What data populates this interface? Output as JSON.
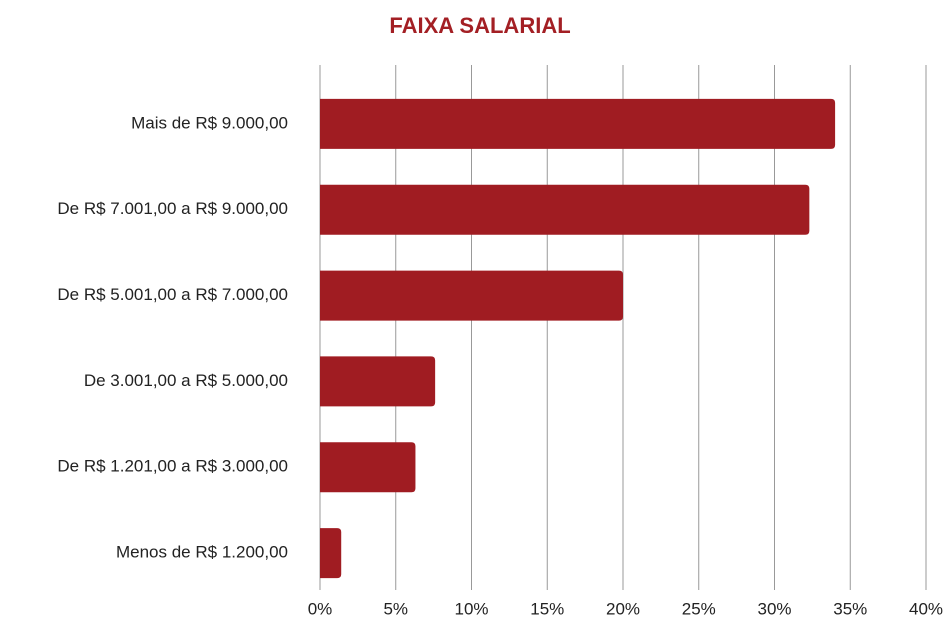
{
  "chart_data": {
    "type": "bar",
    "orientation": "horizontal",
    "title": "FAIXA SALARIAL",
    "categories": [
      "Mais de R$ 9.000,00",
      "De R$ 7.001,00 a R$ 9.000,00",
      "De R$ 5.001,00 a R$ 7.000,00",
      "De 3.001,00 a R$ 5.000,00",
      "De R$ 1.201,00 a R$ 3.000,00",
      "Menos de R$ 1.200,00"
    ],
    "values": [
      34,
      32.3,
      20,
      7.6,
      6.3,
      1.4
    ],
    "color": "#a01c22",
    "xlim": [
      0,
      40
    ],
    "xticks": [
      {
        "value": 0,
        "label": "0%"
      },
      {
        "value": 5,
        "label": "5%"
      },
      {
        "value": 10,
        "label": "10%"
      },
      {
        "value": 15,
        "label": "15%"
      },
      {
        "value": 20,
        "label": "20%"
      },
      {
        "value": 25,
        "label": "25%"
      },
      {
        "value": 30,
        "label": "30%"
      },
      {
        "value": 35,
        "label": "35%"
      },
      {
        "value": 40,
        "label": "40%"
      }
    ],
    "grid": true
  }
}
